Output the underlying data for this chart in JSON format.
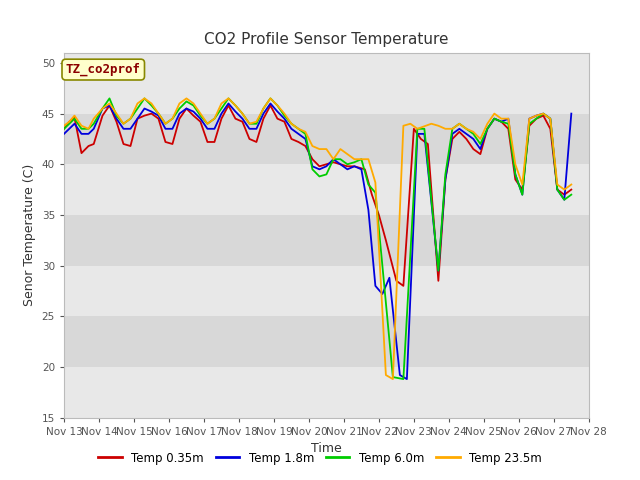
{
  "title": "CO2 Profile Sensor Temperature",
  "ylabel": "Senor Temperature (C)",
  "xlabel": "Time",
  "ylim": [
    15,
    51
  ],
  "yticks": [
    15,
    20,
    25,
    30,
    35,
    40,
    45,
    50
  ],
  "background_color": "#ffffff",
  "plot_bg_color": "#e8e8e8",
  "band_colors": [
    "#e8e8e8",
    "#d8d8d8"
  ],
  "legend_label": "TZ_co2prof",
  "series": {
    "Temp 0.35m": {
      "color": "#cc0000",
      "data": [
        [
          13.0,
          43.5
        ],
        [
          13.15,
          44.2
        ],
        [
          13.3,
          44.6
        ],
        [
          13.5,
          41.1
        ],
        [
          13.7,
          41.8
        ],
        [
          13.85,
          42.0
        ],
        [
          14.1,
          44.8
        ],
        [
          14.3,
          45.8
        ],
        [
          14.5,
          44.2
        ],
        [
          14.7,
          42.0
        ],
        [
          14.9,
          41.8
        ],
        [
          15.1,
          44.5
        ],
        [
          15.3,
          44.8
        ],
        [
          15.5,
          45.0
        ],
        [
          15.7,
          44.5
        ],
        [
          15.9,
          42.2
        ],
        [
          16.1,
          42.0
        ],
        [
          16.3,
          44.5
        ],
        [
          16.5,
          45.5
        ],
        [
          16.7,
          44.8
        ],
        [
          16.9,
          44.2
        ],
        [
          17.1,
          42.2
        ],
        [
          17.3,
          42.2
        ],
        [
          17.5,
          44.5
        ],
        [
          17.7,
          45.8
        ],
        [
          17.9,
          44.5
        ],
        [
          18.1,
          44.2
        ],
        [
          18.3,
          42.5
        ],
        [
          18.5,
          42.2
        ],
        [
          18.7,
          44.5
        ],
        [
          18.9,
          45.8
        ],
        [
          19.1,
          44.5
        ],
        [
          19.3,
          44.2
        ],
        [
          19.5,
          42.5
        ],
        [
          19.7,
          42.2
        ],
        [
          19.9,
          41.8
        ],
        [
          20.1,
          40.5
        ],
        [
          20.3,
          39.8
        ],
        [
          20.5,
          40.0
        ],
        [
          20.7,
          40.2
        ],
        [
          20.9,
          40.0
        ],
        [
          21.1,
          39.8
        ],
        [
          21.3,
          39.8
        ],
        [
          21.6,
          39.5
        ],
        [
          21.8,
          37.0
        ],
        [
          22.0,
          35.0
        ],
        [
          22.2,
          32.5
        ],
        [
          22.5,
          28.5
        ],
        [
          22.7,
          28.0
        ],
        [
          23.0,
          43.5
        ],
        [
          23.2,
          42.5
        ],
        [
          23.4,
          42.0
        ],
        [
          23.7,
          28.5
        ],
        [
          23.9,
          38.5
        ],
        [
          24.1,
          42.5
        ],
        [
          24.3,
          43.2
        ],
        [
          24.5,
          42.5
        ],
        [
          24.7,
          41.5
        ],
        [
          24.9,
          41.0
        ],
        [
          25.1,
          43.5
        ],
        [
          25.3,
          44.5
        ],
        [
          25.5,
          44.2
        ],
        [
          25.7,
          43.5
        ],
        [
          25.9,
          38.5
        ],
        [
          26.1,
          37.5
        ],
        [
          26.3,
          43.8
        ],
        [
          26.5,
          44.5
        ],
        [
          26.7,
          44.8
        ],
        [
          26.9,
          43.5
        ],
        [
          27.1,
          37.5
        ],
        [
          27.3,
          37.0
        ],
        [
          27.5,
          37.5
        ]
      ]
    },
    "Temp 1.8m": {
      "color": "#0000dd",
      "data": [
        [
          13.0,
          43.0
        ],
        [
          13.15,
          43.5
        ],
        [
          13.3,
          44.0
        ],
        [
          13.5,
          43.0
        ],
        [
          13.7,
          43.0
        ],
        [
          13.85,
          43.5
        ],
        [
          14.1,
          45.5
        ],
        [
          14.3,
          45.8
        ],
        [
          14.5,
          44.5
        ],
        [
          14.7,
          43.5
        ],
        [
          14.9,
          43.5
        ],
        [
          15.1,
          44.5
        ],
        [
          15.3,
          45.5
        ],
        [
          15.5,
          45.2
        ],
        [
          15.7,
          44.8
        ],
        [
          15.9,
          43.5
        ],
        [
          16.1,
          43.5
        ],
        [
          16.3,
          45.0
        ],
        [
          16.5,
          45.5
        ],
        [
          16.7,
          45.2
        ],
        [
          16.9,
          44.5
        ],
        [
          17.1,
          43.5
        ],
        [
          17.3,
          43.5
        ],
        [
          17.5,
          45.0
        ],
        [
          17.7,
          46.0
        ],
        [
          17.9,
          45.2
        ],
        [
          18.1,
          44.5
        ],
        [
          18.3,
          43.5
        ],
        [
          18.5,
          43.5
        ],
        [
          18.7,
          45.0
        ],
        [
          18.9,
          46.0
        ],
        [
          19.1,
          45.2
        ],
        [
          19.3,
          44.5
        ],
        [
          19.5,
          43.5
        ],
        [
          19.7,
          43.0
        ],
        [
          19.9,
          42.5
        ],
        [
          20.1,
          39.8
        ],
        [
          20.3,
          39.5
        ],
        [
          20.5,
          39.8
        ],
        [
          20.7,
          40.5
        ],
        [
          20.9,
          40.0
        ],
        [
          21.1,
          39.5
        ],
        [
          21.3,
          39.8
        ],
        [
          21.5,
          39.5
        ],
        [
          21.7,
          35.5
        ],
        [
          21.9,
          28.0
        ],
        [
          22.1,
          27.2
        ],
        [
          22.3,
          28.8
        ],
        [
          22.6,
          19.2
        ],
        [
          22.8,
          18.8
        ],
        [
          23.1,
          43.0
        ],
        [
          23.3,
          43.0
        ],
        [
          23.7,
          29.5
        ],
        [
          23.9,
          38.5
        ],
        [
          24.1,
          43.0
        ],
        [
          24.3,
          43.5
        ],
        [
          24.5,
          43.0
        ],
        [
          24.7,
          42.5
        ],
        [
          24.9,
          41.5
        ],
        [
          25.1,
          43.5
        ],
        [
          25.3,
          44.5
        ],
        [
          25.5,
          44.2
        ],
        [
          25.7,
          44.5
        ],
        [
          25.9,
          39.0
        ],
        [
          26.1,
          37.0
        ],
        [
          26.3,
          44.5
        ],
        [
          26.5,
          44.8
        ],
        [
          26.7,
          45.0
        ],
        [
          26.9,
          44.5
        ],
        [
          27.1,
          37.5
        ],
        [
          27.3,
          36.5
        ],
        [
          27.5,
          45.0
        ]
      ]
    },
    "Temp 6.0m": {
      "color": "#00cc00",
      "data": [
        [
          13.0,
          43.5
        ],
        [
          13.15,
          44.0
        ],
        [
          13.3,
          44.5
        ],
        [
          13.5,
          43.5
        ],
        [
          13.7,
          43.5
        ],
        [
          13.85,
          44.0
        ],
        [
          14.1,
          45.5
        ],
        [
          14.3,
          46.5
        ],
        [
          14.5,
          44.8
        ],
        [
          14.7,
          44.0
        ],
        [
          14.9,
          44.5
        ],
        [
          15.1,
          45.5
        ],
        [
          15.3,
          46.5
        ],
        [
          15.5,
          45.8
        ],
        [
          15.7,
          45.0
        ],
        [
          15.9,
          44.0
        ],
        [
          16.1,
          44.5
        ],
        [
          16.3,
          45.5
        ],
        [
          16.5,
          46.2
        ],
        [
          16.7,
          45.8
        ],
        [
          16.9,
          44.8
        ],
        [
          17.1,
          44.0
        ],
        [
          17.3,
          44.5
        ],
        [
          17.5,
          45.5
        ],
        [
          17.7,
          46.5
        ],
        [
          17.9,
          45.8
        ],
        [
          18.1,
          45.0
        ],
        [
          18.3,
          44.0
        ],
        [
          18.5,
          44.0
        ],
        [
          18.7,
          45.5
        ],
        [
          18.9,
          46.5
        ],
        [
          19.1,
          45.8
        ],
        [
          19.3,
          44.8
        ],
        [
          19.5,
          44.0
        ],
        [
          19.7,
          43.5
        ],
        [
          19.9,
          43.0
        ],
        [
          20.1,
          39.5
        ],
        [
          20.3,
          38.8
        ],
        [
          20.5,
          39.0
        ],
        [
          20.7,
          40.5
        ],
        [
          20.9,
          40.5
        ],
        [
          21.1,
          40.0
        ],
        [
          21.3,
          40.2
        ],
        [
          21.5,
          40.5
        ],
        [
          21.7,
          38.0
        ],
        [
          21.9,
          37.2
        ],
        [
          22.1,
          30.0
        ],
        [
          22.4,
          19.0
        ],
        [
          22.7,
          18.8
        ],
        [
          23.1,
          43.5
        ],
        [
          23.3,
          43.5
        ],
        [
          23.7,
          29.5
        ],
        [
          23.9,
          39.0
        ],
        [
          24.1,
          43.5
        ],
        [
          24.3,
          44.0
        ],
        [
          24.5,
          43.5
        ],
        [
          24.7,
          43.0
        ],
        [
          24.9,
          42.0
        ],
        [
          25.1,
          43.5
        ],
        [
          25.3,
          44.5
        ],
        [
          25.5,
          44.2
        ],
        [
          25.7,
          44.0
        ],
        [
          25.9,
          39.0
        ],
        [
          26.1,
          37.0
        ],
        [
          26.3,
          44.0
        ],
        [
          26.5,
          44.5
        ],
        [
          26.7,
          45.0
        ],
        [
          26.9,
          44.5
        ],
        [
          27.1,
          37.5
        ],
        [
          27.3,
          36.5
        ],
        [
          27.5,
          37.0
        ]
      ]
    },
    "Temp 23.5m": {
      "color": "#ffaa00",
      "data": [
        [
          13.0,
          43.8
        ],
        [
          13.15,
          44.2
        ],
        [
          13.3,
          44.8
        ],
        [
          13.5,
          43.8
        ],
        [
          13.7,
          43.5
        ],
        [
          13.85,
          44.5
        ],
        [
          14.1,
          45.5
        ],
        [
          14.3,
          46.0
        ],
        [
          14.5,
          45.0
        ],
        [
          14.7,
          44.0
        ],
        [
          14.9,
          44.5
        ],
        [
          15.1,
          46.0
        ],
        [
          15.3,
          46.5
        ],
        [
          15.5,
          46.0
        ],
        [
          15.7,
          45.0
        ],
        [
          15.9,
          44.0
        ],
        [
          16.1,
          44.5
        ],
        [
          16.3,
          46.0
        ],
        [
          16.5,
          46.5
        ],
        [
          16.7,
          46.0
        ],
        [
          16.9,
          45.0
        ],
        [
          17.1,
          44.0
        ],
        [
          17.3,
          44.5
        ],
        [
          17.5,
          46.0
        ],
        [
          17.7,
          46.5
        ],
        [
          17.9,
          45.8
        ],
        [
          18.1,
          45.0
        ],
        [
          18.3,
          44.0
        ],
        [
          18.5,
          44.2
        ],
        [
          18.7,
          45.5
        ],
        [
          18.9,
          46.5
        ],
        [
          19.1,
          45.8
        ],
        [
          19.3,
          45.0
        ],
        [
          19.5,
          44.0
        ],
        [
          19.7,
          43.5
        ],
        [
          19.9,
          43.2
        ],
        [
          20.1,
          41.8
        ],
        [
          20.3,
          41.5
        ],
        [
          20.5,
          41.5
        ],
        [
          20.7,
          40.5
        ],
        [
          20.9,
          41.5
        ],
        [
          21.1,
          41.0
        ],
        [
          21.3,
          40.5
        ],
        [
          21.5,
          40.5
        ],
        [
          21.7,
          40.5
        ],
        [
          21.9,
          38.2
        ],
        [
          22.2,
          19.2
        ],
        [
          22.4,
          18.8
        ],
        [
          22.7,
          43.8
        ],
        [
          22.9,
          44.0
        ],
        [
          23.1,
          43.5
        ],
        [
          23.5,
          44.0
        ],
        [
          23.7,
          43.8
        ],
        [
          23.9,
          43.5
        ],
        [
          24.1,
          43.5
        ],
        [
          24.3,
          44.0
        ],
        [
          24.5,
          43.5
        ],
        [
          24.7,
          43.2
        ],
        [
          24.9,
          42.5
        ],
        [
          25.1,
          44.0
        ],
        [
          25.3,
          45.0
        ],
        [
          25.5,
          44.5
        ],
        [
          25.7,
          44.5
        ],
        [
          25.9,
          40.0
        ],
        [
          26.1,
          38.0
        ],
        [
          26.3,
          44.5
        ],
        [
          26.5,
          44.8
        ],
        [
          26.7,
          45.0
        ],
        [
          26.9,
          44.5
        ],
        [
          27.1,
          38.0
        ],
        [
          27.3,
          37.5
        ],
        [
          27.5,
          38.0
        ]
      ]
    }
  },
  "xtick_positions": [
    13,
    14,
    15,
    16,
    17,
    18,
    19,
    20,
    21,
    22,
    23,
    24,
    25,
    26,
    27,
    28
  ],
  "xtick_labels": [
    "Nov 13",
    "Nov 14",
    "Nov 15",
    "Nov 16",
    "Nov 17",
    "Nov 18",
    "Nov 19",
    "Nov 20",
    "Nov 21",
    "Nov 22",
    "Nov 23",
    "Nov 24",
    "Nov 25",
    "Nov 26",
    "Nov 27",
    "Nov 28"
  ]
}
